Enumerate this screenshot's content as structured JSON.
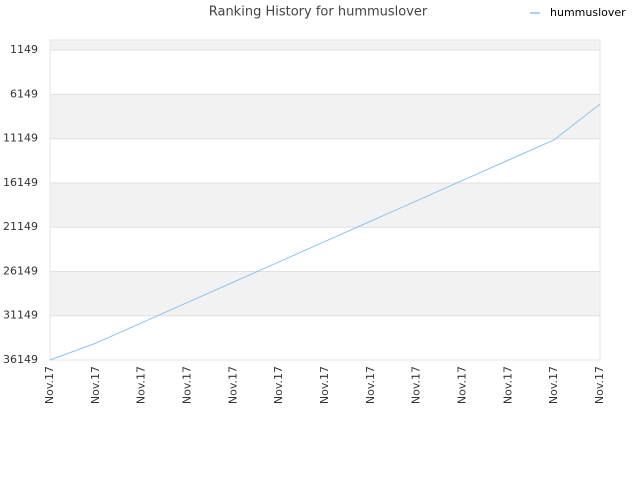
{
  "chart_data": {
    "type": "line",
    "title": "Ranking History for hummuslover",
    "categories": [
      "Nov.17",
      "Nov.17",
      "Nov.17",
      "Nov.17",
      "Nov.17",
      "Nov.17",
      "Nov.17",
      "Nov.17",
      "Nov.17",
      "Nov.17",
      "Nov.17",
      "Nov.17",
      "Nov.17"
    ],
    "series": [
      {
        "name": "hummuslover",
        "color": "#8ec3f2",
        "values": [
          36149,
          34244,
          31947,
          29650,
          27353,
          25056,
          22759,
          20462,
          18165,
          15868,
          13571,
          11274,
          7245
        ]
      }
    ],
    "ylim": [
      1,
      36149
    ],
    "y_reversed": true,
    "yticks": [
      1149,
      6149,
      11149,
      16149,
      21149,
      26149,
      31149,
      36149
    ],
    "grid": true,
    "legend": "top-right"
  }
}
